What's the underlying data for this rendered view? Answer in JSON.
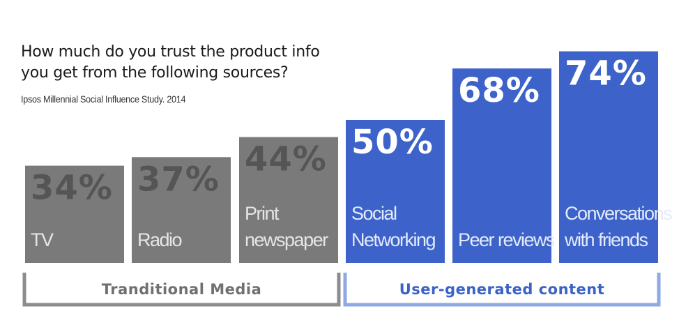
{
  "chart_data": {
    "type": "bar",
    "title": "How much do you trust the product info\nyou get from the following sources?",
    "subtitle": "Ipsos Millennial Social Influence Study. 2014",
    "categories": [
      [
        "TV"
      ],
      [
        "Radio"
      ],
      [
        "Print",
        "newspaper"
      ],
      [
        "Social",
        "Networking"
      ],
      [
        "Peer reviews"
      ],
      [
        "Conversations",
        "with friends"
      ]
    ],
    "values": [
      34,
      37,
      44,
      50,
      68,
      74
    ],
    "value_labels": [
      "34%",
      "37%",
      "44%",
      "50%",
      "68%",
      "74%"
    ],
    "unit": "%",
    "ylim": [
      0,
      80
    ],
    "groups": [
      {
        "label": "Tranditional Media",
        "members": [
          0,
          1,
          2
        ],
        "color": "#7a7a7a",
        "label_color": "#707070",
        "bracket_color": "#8c8c8c"
      },
      {
        "label": "User-generated content",
        "members": [
          3,
          4,
          5
        ],
        "color": "#3d63cb",
        "label_color": "#3b62c8",
        "bracket_color": "#8fa9e4"
      }
    ],
    "value_label_colors": [
      "#555555",
      "#555555",
      "#555555",
      "#ffffff",
      "#ffffff",
      "#ffffff"
    ],
    "category_label_color": "#e6e6e6",
    "category_label_color_blue": "#e4ebf9"
  }
}
